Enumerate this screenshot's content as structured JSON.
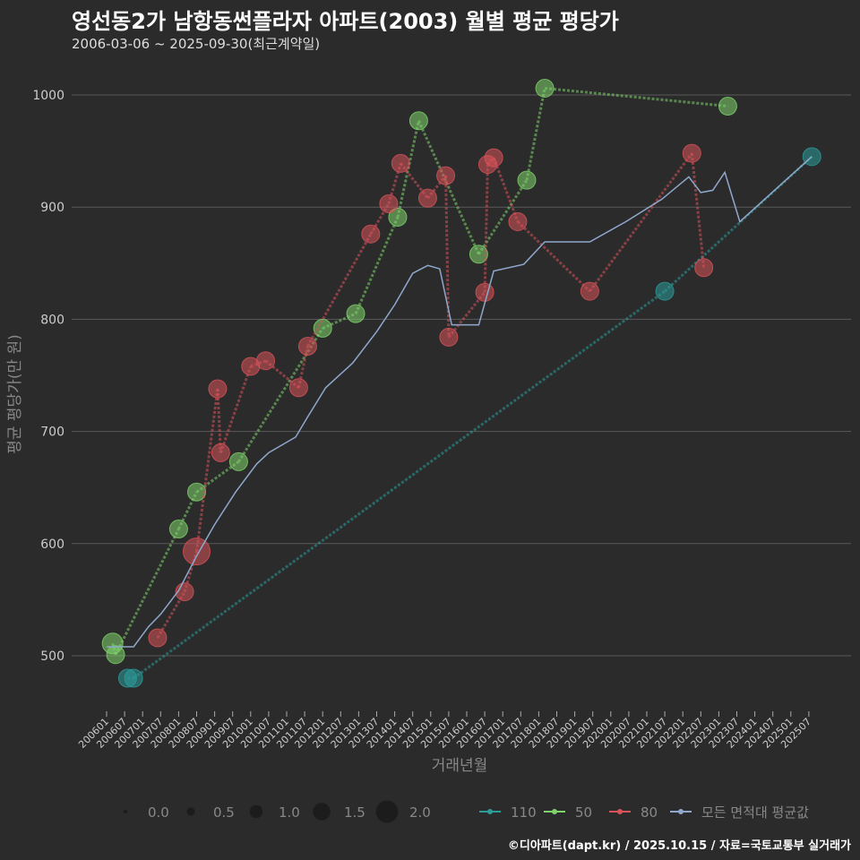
{
  "title": "영선동2가 남항동썬플라자 아파트(2003) 월별 평균 평당가",
  "subtitle": "2006-03-06 ~ 2025-09-30(최근계약일)",
  "credit": "©디아파트(dapt.kr) / 2025.10.15 / 자료=국토교통부 실거래가",
  "chart_data": {
    "type": "line",
    "xlabel": "거래년월",
    "ylabel": "평균 평당가(만 원)",
    "ylim": [
      455,
      1030
    ],
    "yticks": [
      500,
      600,
      700,
      800,
      900,
      1000
    ],
    "x_start": "2006-01",
    "xticks": [
      "200601",
      "200607",
      "200701",
      "200707",
      "200801",
      "200807",
      "200901",
      "200907",
      "201001",
      "201007",
      "201101",
      "201107",
      "201201",
      "201207",
      "201301",
      "201307",
      "201401",
      "201407",
      "201501",
      "201507",
      "201601",
      "201607",
      "201701",
      "201707",
      "201801",
      "201807",
      "201901",
      "201907",
      "202001",
      "202007",
      "202101",
      "202107",
      "202201",
      "202207",
      "202301",
      "202307",
      "202401",
      "202407",
      "202501",
      "202507"
    ],
    "size_legend": {
      "title": "",
      "values": [
        "0.0",
        "0.5",
        "1.0",
        "1.5",
        "2.0"
      ]
    },
    "series": [
      {
        "name": "110",
        "color": "#2a9d9a",
        "points": [
          [
            "2006-08",
            480,
            1
          ],
          [
            "2006-10",
            480,
            1
          ],
          [
            "2021-07",
            825,
            1
          ],
          [
            "2025-08",
            945,
            1
          ]
        ]
      },
      {
        "name": "50",
        "color": "#7fd36b",
        "points": [
          [
            "2006-03",
            511,
            1.3
          ],
          [
            "2006-04",
            501,
            1
          ],
          [
            "2008-01",
            613,
            1
          ],
          [
            "2008-07",
            646,
            1
          ],
          [
            "2009-09",
            673,
            1
          ],
          [
            "2012-01",
            792,
            1
          ],
          [
            "2012-12",
            805,
            1
          ],
          [
            "2014-02",
            891,
            1
          ],
          [
            "2014-09",
            977,
            1
          ],
          [
            "2016-05",
            858,
            1
          ],
          [
            "2017-09",
            924,
            1
          ],
          [
            "2018-03",
            1006,
            1
          ],
          [
            "2023-04",
            990,
            1
          ]
        ]
      },
      {
        "name": "80",
        "color": "#d9535a",
        "points": [
          [
            "2007-06",
            516,
            1
          ],
          [
            "2008-03",
            557,
            1
          ],
          [
            "2008-07",
            593,
            2
          ],
          [
            "2009-02",
            738,
            1
          ],
          [
            "2009-03",
            681,
            1
          ],
          [
            "2010-01",
            758,
            1
          ],
          [
            "2010-06",
            763,
            1
          ],
          [
            "2011-05",
            739,
            1
          ],
          [
            "2011-08",
            776,
            1
          ],
          [
            "2013-05",
            876,
            1
          ],
          [
            "2013-11",
            903,
            1
          ],
          [
            "2014-03",
            939,
            1
          ],
          [
            "2014-12",
            908,
            1
          ],
          [
            "2015-06",
            928,
            1
          ],
          [
            "2015-07",
            784,
            1
          ],
          [
            "2016-07",
            824,
            1
          ],
          [
            "2016-08",
            938,
            1
          ],
          [
            "2016-10",
            944,
            1
          ],
          [
            "2017-06",
            887,
            1
          ],
          [
            "2019-06",
            825,
            1
          ],
          [
            "2022-04",
            948,
            1
          ],
          [
            "2022-08",
            846,
            1
          ]
        ]
      },
      {
        "name": "모든 면적대 평균값",
        "color": "#8fa8cc",
        "points": [
          [
            "2006-01",
            508
          ],
          [
            "2006-10",
            508
          ],
          [
            "2007-03",
            526
          ],
          [
            "2007-07",
            537
          ],
          [
            "2008-01",
            558
          ],
          [
            "2008-07",
            589
          ],
          [
            "2009-01",
            617
          ],
          [
            "2009-08",
            646
          ],
          [
            "2010-03",
            671
          ],
          [
            "2010-07",
            681
          ],
          [
            "2011-04",
            695
          ],
          [
            "2011-08",
            713
          ],
          [
            "2012-02",
            739
          ],
          [
            "2012-11",
            761
          ],
          [
            "2013-07",
            789
          ],
          [
            "2014-01",
            813
          ],
          [
            "2014-07",
            841
          ],
          [
            "2014-12",
            848
          ],
          [
            "2015-04",
            845
          ],
          [
            "2015-08",
            795
          ],
          [
            "2016-05",
            795
          ],
          [
            "2016-10",
            843
          ],
          [
            "2017-08",
            849
          ],
          [
            "2018-03",
            869
          ],
          [
            "2019-06",
            869
          ],
          [
            "2020-06",
            887
          ],
          [
            "2021-06",
            907
          ],
          [
            "2022-03",
            927
          ],
          [
            "2022-07",
            913
          ],
          [
            "2022-11",
            915
          ],
          [
            "2023-03",
            931
          ],
          [
            "2023-08",
            887
          ],
          [
            "2025-08",
            945
          ]
        ]
      }
    ]
  }
}
